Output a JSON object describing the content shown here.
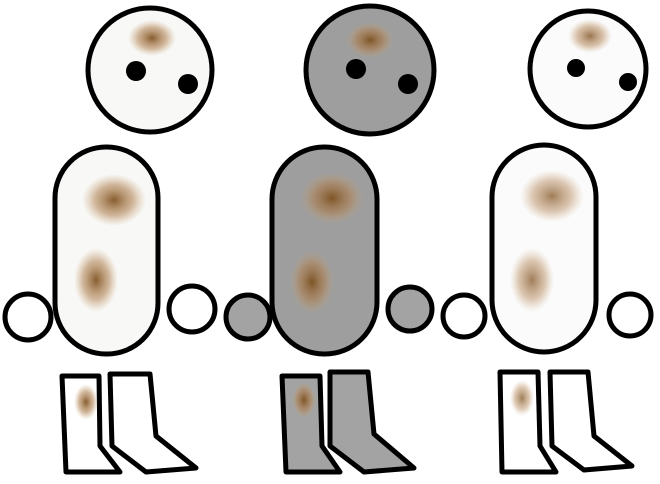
{
  "sprite_sheet": {
    "variants": [
      {
        "name": "white",
        "fill": "#f8f8f6",
        "limb_fill": "#ffffff"
      },
      {
        "name": "gray",
        "fill": "#9e9e9e",
        "limb_fill": "#a3a3a3"
      },
      {
        "name": "white-faded",
        "fill": "#fbfbfb",
        "limb_fill": "#ffffff"
      }
    ],
    "outline_color": "#000000",
    "stain_color": "#a0703a"
  }
}
